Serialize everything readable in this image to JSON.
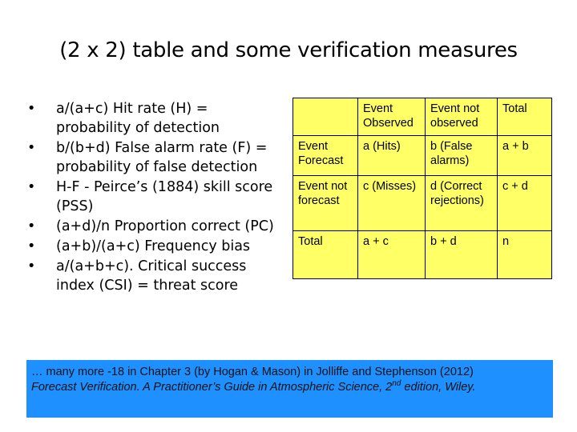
{
  "slide": {
    "title": "(2 x 2) table and some verification measures",
    "bullets": [
      "a/(a+c) Hit rate (H) = probability of detection",
      "b/(b+d) False alarm rate (F) = probability of false detection",
      "H-F - Peirce’s (1884) skill score (PSS)",
      "(a+d)/n  Proportion correct (PC)",
      "(a+b)/(a+c) Frequency bias",
      "a/(a+b+c). Critical success index (CSI) = threat score"
    ],
    "table": {
      "header": [
        "",
        "Event Observed",
        "Event not observed",
        "Total"
      ],
      "rows": [
        [
          "Event Forecast",
          "a (Hits)",
          "b (False alarms)",
          "a + b"
        ],
        [
          "Event not forecast",
          "c (Misses)",
          "d (Correct rejections)",
          "c + d"
        ],
        [
          "Total",
          "a + c",
          "b + d",
          "n"
        ]
      ],
      "background_color": "#ffff66"
    },
    "note": {
      "line1": "… many more -18 in Chapter 3 (by Hogan & Mason) in Jolliffe and Stephenson (2012)",
      "ref_part1": "Forecast Verification. A Practitioner’s Guide in Atmospheric Science",
      "ref_part2": ", 2",
      "superscript": "nd",
      "ref_part3": " edition, Wiley.",
      "background_color": "#1e90ff"
    }
  }
}
